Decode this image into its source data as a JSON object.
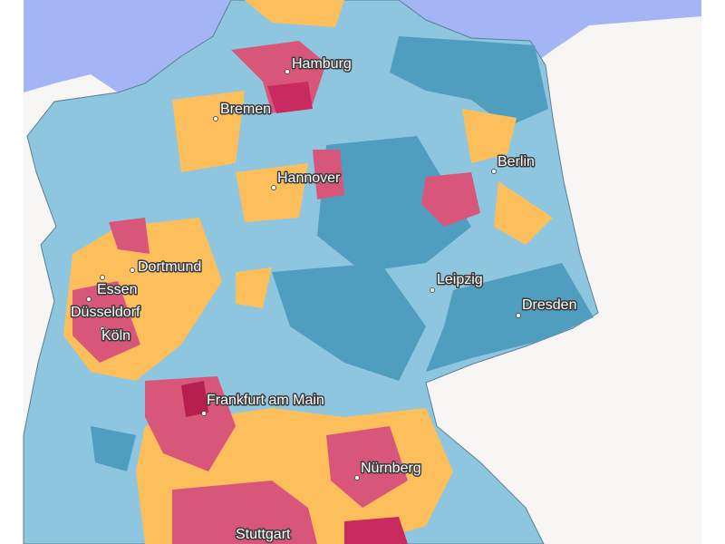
{
  "cities": [
    {
      "label": "Hamburg"
    },
    {
      "label": "Bremen"
    },
    {
      "label": "Hannover"
    },
    {
      "label": "Berlin"
    },
    {
      "label": "Dortmund"
    },
    {
      "label": "Essen"
    },
    {
      "label": "Düsseldorf"
    },
    {
      "label": "Köln"
    },
    {
      "label": "Leipzig"
    },
    {
      "label": "Dresden"
    },
    {
      "label": "Frankfurt am Main"
    },
    {
      "label": "Nürnberg"
    },
    {
      "label": "Stuttgart"
    }
  ]
}
